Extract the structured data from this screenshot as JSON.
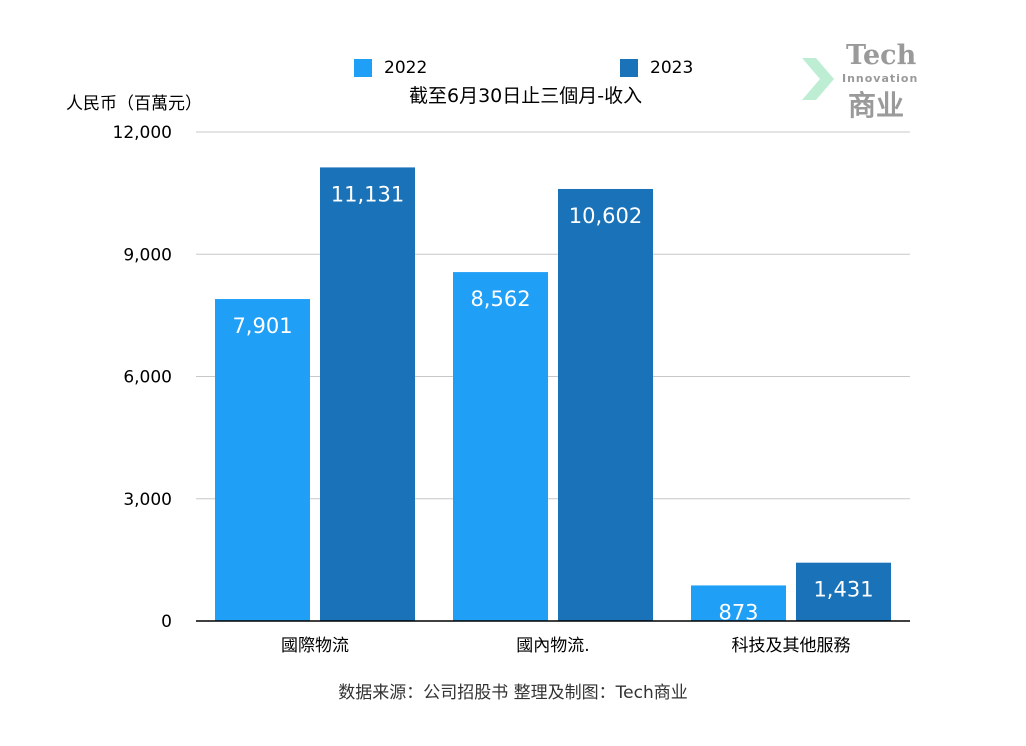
{
  "chart_data": {
    "type": "bar",
    "title": "截至6月30日止三個月-收入",
    "ylabel": "人民币（百萬元）",
    "xlabel": "",
    "categories": [
      "國際物流",
      "國內物流.",
      "科技及其他服務"
    ],
    "series": [
      {
        "name": "2022",
        "color": "#1f9ff6",
        "values": [
          7901,
          8562,
          873
        ],
        "labels": [
          "7,901",
          "8,562",
          "873"
        ]
      },
      {
        "name": "2023",
        "color": "#1a72b8",
        "values": [
          11131,
          10602,
          1431
        ],
        "labels": [
          "11,131",
          "10,602",
          "1,431"
        ]
      }
    ],
    "ylim": [
      0,
      12000
    ],
    "yticks": [
      0,
      3000,
      6000,
      9000,
      12000
    ],
    "ytick_labels": [
      "0",
      "3,000",
      "6,000",
      "9,000",
      "12,000"
    ],
    "grid": true,
    "legend_position": "top"
  },
  "source_note": "数据来源：公司招股书  整理及制图：Tech商业",
  "logo": {
    "line1": "Tech",
    "line2": "Innovation",
    "line3": "商业"
  }
}
